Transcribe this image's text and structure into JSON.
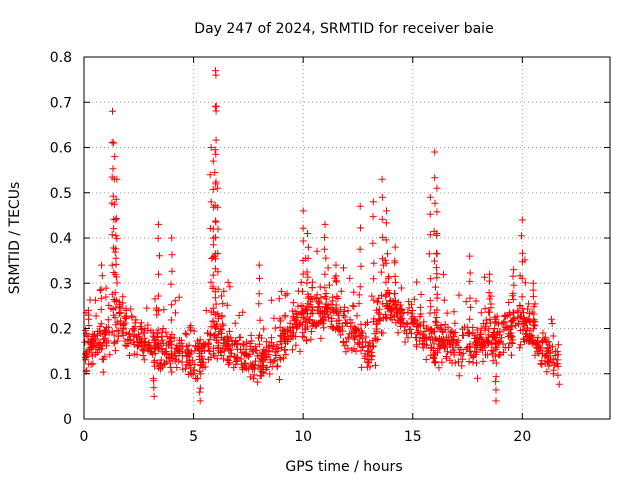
{
  "chart_data": {
    "type": "scatter",
    "title": "Day 247 of 2024, SRMTID for receiver baie",
    "xlabel": "GPS time / hours",
    "ylabel": "SRMTID / TECUs",
    "xlim": [
      0,
      24
    ],
    "ylim": [
      0,
      0.8
    ],
    "xticks": [
      0,
      5,
      10,
      15,
      20
    ],
    "yticks": [
      0,
      0.1,
      0.2,
      0.3,
      0.4,
      0.5,
      0.6,
      0.7,
      0.8
    ],
    "xtick_labels": [
      "0",
      "5",
      "10",
      "15",
      "20"
    ],
    "ytick_labels": [
      "0",
      "0.1",
      "0.2",
      "0.3",
      "0.4",
      "0.5",
      "0.6",
      "0.7",
      "0.8"
    ],
    "grid": true,
    "marker": "+",
    "color": "#ff0000",
    "x_extent_hours": [
      0,
      21.7
    ],
    "baseline_profile": [
      [
        0.0,
        0.15
      ],
      [
        1.0,
        0.17
      ],
      [
        1.5,
        0.22
      ],
      [
        2.5,
        0.17
      ],
      [
        3.5,
        0.16
      ],
      [
        5.0,
        0.13
      ],
      [
        6.0,
        0.19
      ],
      [
        7.0,
        0.14
      ],
      [
        8.0,
        0.13
      ],
      [
        9.0,
        0.17
      ],
      [
        10.0,
        0.22
      ],
      [
        11.0,
        0.24
      ],
      [
        12.0,
        0.21
      ],
      [
        13.0,
        0.14
      ],
      [
        13.5,
        0.23
      ],
      [
        14.0,
        0.25
      ],
      [
        15.0,
        0.21
      ],
      [
        16.0,
        0.17
      ],
      [
        17.0,
        0.16
      ],
      [
        18.0,
        0.16
      ],
      [
        19.0,
        0.19
      ],
      [
        20.0,
        0.21
      ],
      [
        21.0,
        0.15
      ],
      [
        21.7,
        0.14
      ]
    ],
    "peaks": [
      {
        "x": 0.2,
        "y": 0.24
      },
      {
        "x": 0.8,
        "y": 0.34
      },
      {
        "x": 1.3,
        "y": 0.68
      },
      {
        "x": 1.35,
        "y": 0.61
      },
      {
        "x": 1.4,
        "y": 0.58
      },
      {
        "x": 1.5,
        "y": 0.53
      },
      {
        "x": 1.45,
        "y": 0.44
      },
      {
        "x": 3.4,
        "y": 0.43
      },
      {
        "x": 4.0,
        "y": 0.4
      },
      {
        "x": 5.8,
        "y": 0.6
      },
      {
        "x": 5.9,
        "y": 0.57
      },
      {
        "x": 6.0,
        "y": 0.77
      },
      {
        "x": 6.02,
        "y": 0.76
      },
      {
        "x": 6.0,
        "y": 0.69
      },
      {
        "x": 5.9,
        "y": 0.42
      },
      {
        "x": 6.1,
        "y": 0.51
      },
      {
        "x": 8.0,
        "y": 0.34
      },
      {
        "x": 10.0,
        "y": 0.46
      },
      {
        "x": 10.2,
        "y": 0.41
      },
      {
        "x": 11.0,
        "y": 0.43
      },
      {
        "x": 11.5,
        "y": 0.34
      },
      {
        "x": 12.6,
        "y": 0.47
      },
      {
        "x": 13.2,
        "y": 0.48
      },
      {
        "x": 13.6,
        "y": 0.53
      },
      {
        "x": 13.8,
        "y": 0.46
      },
      {
        "x": 14.2,
        "y": 0.38
      },
      {
        "x": 15.8,
        "y": 0.49
      },
      {
        "x": 16.0,
        "y": 0.59
      },
      {
        "x": 16.1,
        "y": 0.51
      },
      {
        "x": 16.1,
        "y": 0.41
      },
      {
        "x": 17.6,
        "y": 0.36
      },
      {
        "x": 18.5,
        "y": 0.32
      },
      {
        "x": 19.6,
        "y": 0.33
      },
      {
        "x": 20.0,
        "y": 0.44
      },
      {
        "x": 20.5,
        "y": 0.3
      },
      {
        "x": 18.8,
        "y": 0.04
      },
      {
        "x": 5.3,
        "y": 0.04
      },
      {
        "x": 3.2,
        "y": 0.05
      }
    ],
    "point_count": 1400
  }
}
